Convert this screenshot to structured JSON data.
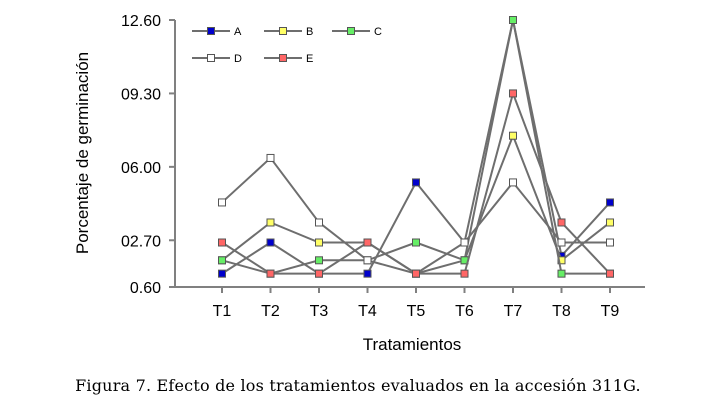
{
  "chart_data": {
    "type": "line",
    "title": "",
    "xlabel": "Tratamientos",
    "ylabel": "Porcentaje de germinación",
    "categories": [
      "T1",
      "T2",
      "T3",
      "T4",
      "T5",
      "T6",
      "T7",
      "T8",
      "T9"
    ],
    "yticks": [
      "0.60",
      "02.70",
      "06.00",
      "09.30",
      "12.60"
    ],
    "ylim": [
      0.6,
      12.6
    ],
    "grid": false,
    "legend_position": "top-left",
    "series": [
      {
        "name": "A",
        "color": "#0000cc",
        "values": [
          1.2,
          2.6,
          1.2,
          1.2,
          5.3,
          2.6,
          12.6,
          2.0,
          4.4
        ]
      },
      {
        "name": "B",
        "color": "#ffff66",
        "values": [
          1.8,
          3.5,
          2.6,
          2.6,
          1.2,
          1.8,
          7.4,
          1.8,
          3.5
        ]
      },
      {
        "name": "C",
        "color": "#66ee66",
        "values": [
          1.8,
          1.2,
          1.8,
          1.8,
          2.6,
          1.8,
          12.6,
          1.2,
          1.2
        ]
      },
      {
        "name": "D",
        "color": "#ffffff",
        "values": [
          4.4,
          6.4,
          3.5,
          1.8,
          1.2,
          2.6,
          5.3,
          2.6,
          2.6
        ]
      },
      {
        "name": "E",
        "color": "#ff6666",
        "values": [
          2.6,
          1.2,
          1.2,
          2.6,
          1.2,
          1.2,
          9.3,
          3.5,
          1.2
        ]
      }
    ]
  },
  "caption": "Figura 7. Efecto de los tratamientos evaluados en la accesión 311G."
}
